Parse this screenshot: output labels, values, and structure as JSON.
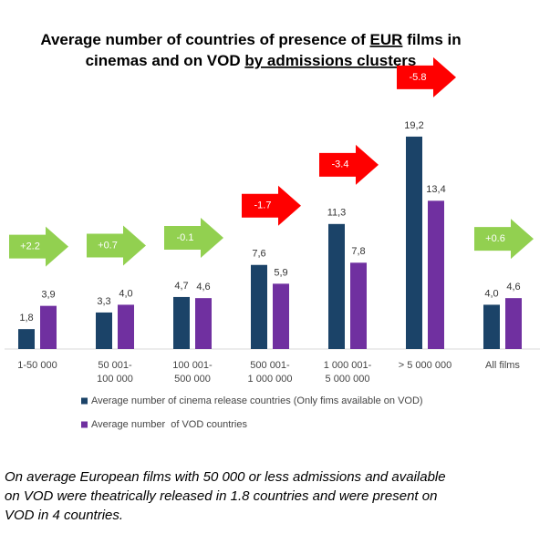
{
  "chart_data": {
    "type": "bar",
    "title": [
      [
        {
          "text": "Average number of countries of presence of ",
          "underline": false
        },
        {
          "text": "EUR",
          "underline": true
        },
        {
          "text": " films in",
          "underline": false
        }
      ],
      [
        {
          "text": "cinemas and on VOD ",
          "underline": false
        },
        {
          "text": "by admissions clusters",
          "underline": true
        }
      ]
    ],
    "categories": [
      [
        "1-50 000"
      ],
      [
        "50 001-",
        "100 000"
      ],
      [
        "100 001-",
        "500 000"
      ],
      [
        "500 001-",
        "1 000 000"
      ],
      [
        "1 000 001-",
        "5 000 000"
      ],
      [
        "> 5 000 000"
      ],
      [
        "All films"
      ]
    ],
    "series": [
      {
        "name": "Average number of cinema release countries (Only fims available on VOD)",
        "color": "#1b4368",
        "values": [
          1.8,
          3.3,
          4.7,
          7.6,
          11.3,
          19.2,
          4.0
        ],
        "value_labels": [
          "1,8",
          "3,3",
          "4,7",
          "7,6",
          "11,3",
          "19,2",
          "4,0"
        ]
      },
      {
        "name": "Average number  of VOD countries",
        "color": "#7030a0",
        "values": [
          3.9,
          4.0,
          4.6,
          5.9,
          7.8,
          13.4,
          4.6
        ],
        "value_labels": [
          "3,9",
          "4,0",
          "4,6",
          "5,9",
          "7,8",
          "13,4",
          "4,6"
        ]
      }
    ],
    "differences": {
      "values": [
        2.2,
        0.7,
        -0.1,
        -1.7,
        -3.4,
        -5.8,
        0.6
      ],
      "value_labels": [
        "+2.2",
        "+0.7",
        "-0.1",
        "-1.7",
        "-3.4",
        "-5.8",
        "+0.6"
      ],
      "colors": [
        "#92d050",
        "#92d050",
        "#92d050",
        "#ff0000",
        "#ff0000",
        "#ff0000",
        "#92d050"
      ]
    },
    "note": [
      "On average European films with 50 000 or less admissions and available",
      "on VOD were theatrically released in 1.8 countries and were present on",
      "VOD in 4 countries."
    ]
  }
}
